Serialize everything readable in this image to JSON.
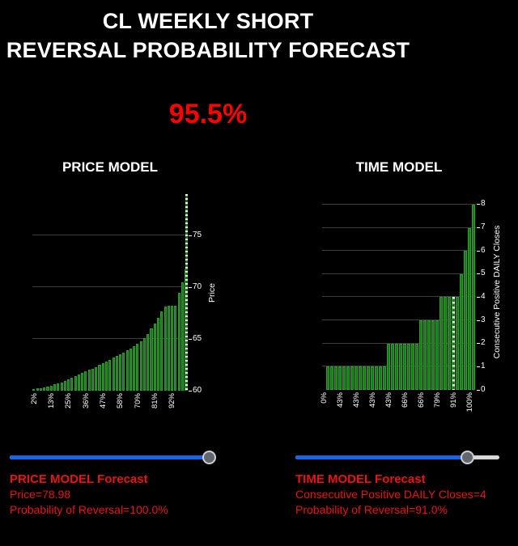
{
  "header": {
    "title_line1": "CL WEEKLY SHORT",
    "title_line2": "REVERSAL PROBABILITY FORECAST",
    "combined_probability": "95.5%"
  },
  "chart_data": [
    {
      "type": "bar",
      "title": "PRICE MODEL",
      "ylabel": "Price",
      "ylabel_side": "right",
      "ylim": [
        60,
        79
      ],
      "yticks": [
        60,
        65,
        70,
        75
      ],
      "gridlines": [
        65,
        70,
        75
      ],
      "values": [
        60.15,
        60.2,
        60.25,
        60.3,
        60.4,
        60.5,
        60.6,
        60.7,
        60.8,
        60.95,
        61.1,
        61.25,
        61.4,
        61.55,
        61.7,
        61.85,
        62.0,
        62.15,
        62.3,
        62.5,
        62.65,
        62.85,
        63.0,
        63.2,
        63.35,
        63.55,
        63.7,
        63.9,
        64.1,
        64.3,
        64.5,
        64.75,
        65.1,
        65.5,
        66.0,
        66.5,
        67.05,
        67.7,
        68.1,
        68.2,
        68.2,
        68.25,
        69.5,
        70.5,
        71.7
      ],
      "xtick_every": 5,
      "xtick_labels": [
        "2%",
        "13%",
        "25%",
        "36%",
        "47%",
        "58%",
        "70%",
        "81%",
        "92%"
      ],
      "marker": {
        "at_right_edge": true,
        "top_value": 78.98,
        "style": "green-white-dashed"
      },
      "legend": "none",
      "grid": "horizontal"
    },
    {
      "type": "bar",
      "title": "TIME MODEL",
      "ylabel": "Consecutive Positive DAILY Closes",
      "ylabel_side": "right",
      "ylim": [
        0,
        8.45
      ],
      "yticks": [
        0,
        1,
        2,
        3,
        4,
        5,
        6,
        7,
        8
      ],
      "gridlines": [
        1,
        2,
        3,
        4,
        5,
        6,
        7,
        8
      ],
      "values": [
        0,
        1,
        1,
        1,
        1,
        1,
        1,
        1,
        1,
        1,
        1,
        1,
        1,
        1,
        1,
        1,
        2,
        2,
        2,
        2,
        2,
        2,
        2,
        2,
        3,
        3,
        3,
        3,
        3,
        4,
        4,
        4,
        4,
        4,
        5,
        6,
        7,
        8
      ],
      "xtick_every": 4,
      "xtick_labels": [
        "0%",
        "43%",
        "43%",
        "43%",
        "43%",
        "66%",
        "66%",
        "79%",
        "91%",
        "100%"
      ],
      "marker": {
        "bar_index": 32,
        "top_value": 4,
        "style": "white-dashed"
      },
      "legend": "none",
      "grid": "horizontal"
    }
  ],
  "price_model": {
    "slider": {
      "position_pct": 100
    },
    "forecast": {
      "heading": "PRICE MODEL Forecast",
      "value_line": "Price=78.98",
      "probability_line": "Probability of Reversal=100.0%"
    }
  },
  "time_model": {
    "slider": {
      "position_pct": 84.5
    },
    "forecast": {
      "heading": "TIME MODEL Forecast",
      "value_line": "Consecutive Positive DAILY Closes=4",
      "probability_line": "Probability of Reversal=91.0%"
    }
  },
  "colors": {
    "background": "#000000",
    "title_text": "#ffffff",
    "probability_red": "#ff0000",
    "forecast_red": "#e81414",
    "bar_green": "#1a7a1a",
    "bar_edge_green": "#2ba02b",
    "gridline_gray": "#3d3d3d",
    "marker_white": "#ffffff",
    "slider_blue": "#1566e8",
    "slider_track_gray": "#d9d9d9",
    "thumb_gray": "#61666f"
  }
}
